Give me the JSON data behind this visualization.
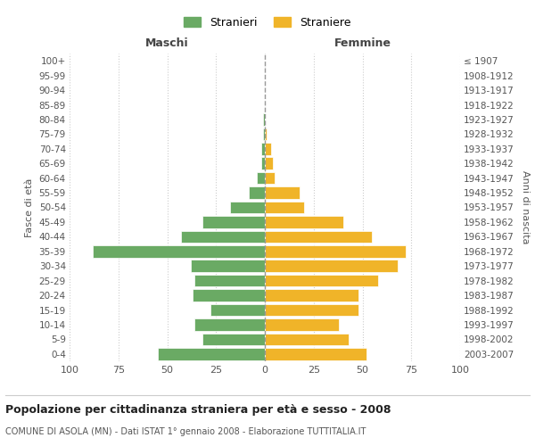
{
  "age_groups": [
    "0-4",
    "5-9",
    "10-14",
    "15-19",
    "20-24",
    "25-29",
    "30-34",
    "35-39",
    "40-44",
    "45-49",
    "50-54",
    "55-59",
    "60-64",
    "65-69",
    "70-74",
    "75-79",
    "80-84",
    "85-89",
    "90-94",
    "95-99",
    "100+"
  ],
  "birth_years": [
    "2003-2007",
    "1998-2002",
    "1993-1997",
    "1988-1992",
    "1983-1987",
    "1978-1982",
    "1973-1977",
    "1968-1972",
    "1963-1967",
    "1958-1962",
    "1953-1957",
    "1948-1952",
    "1943-1947",
    "1938-1942",
    "1933-1937",
    "1928-1932",
    "1923-1927",
    "1918-1922",
    "1913-1917",
    "1908-1912",
    "≤ 1907"
  ],
  "maschi": [
    55,
    32,
    36,
    28,
    37,
    36,
    38,
    88,
    43,
    32,
    18,
    8,
    4,
    2,
    2,
    1,
    1,
    0,
    0,
    0,
    0
  ],
  "femmine": [
    52,
    43,
    38,
    48,
    48,
    58,
    68,
    72,
    55,
    40,
    20,
    18,
    5,
    4,
    3,
    1,
    0,
    0,
    0,
    0,
    0
  ],
  "maschi_color": "#6aaa64",
  "femmine_color": "#f0b429",
  "bar_edge_color": "white",
  "dashed_line_color": "#999999",
  "grid_color": "#cccccc",
  "bg_color": "#ffffff",
  "title": "Popolazione per cittadinanza straniera per età e sesso - 2008",
  "subtitle": "COMUNE DI ASOLA (MN) - Dati ISTAT 1° gennaio 2008 - Elaborazione TUTTITALIA.IT",
  "xlabel_left": "Maschi",
  "xlabel_right": "Femmine",
  "ylabel_left": "Fasce di età",
  "ylabel_right": "Anni di nascita",
  "legend_maschi": "Stranieri",
  "legend_femmine": "Straniere",
  "xlim": 100
}
